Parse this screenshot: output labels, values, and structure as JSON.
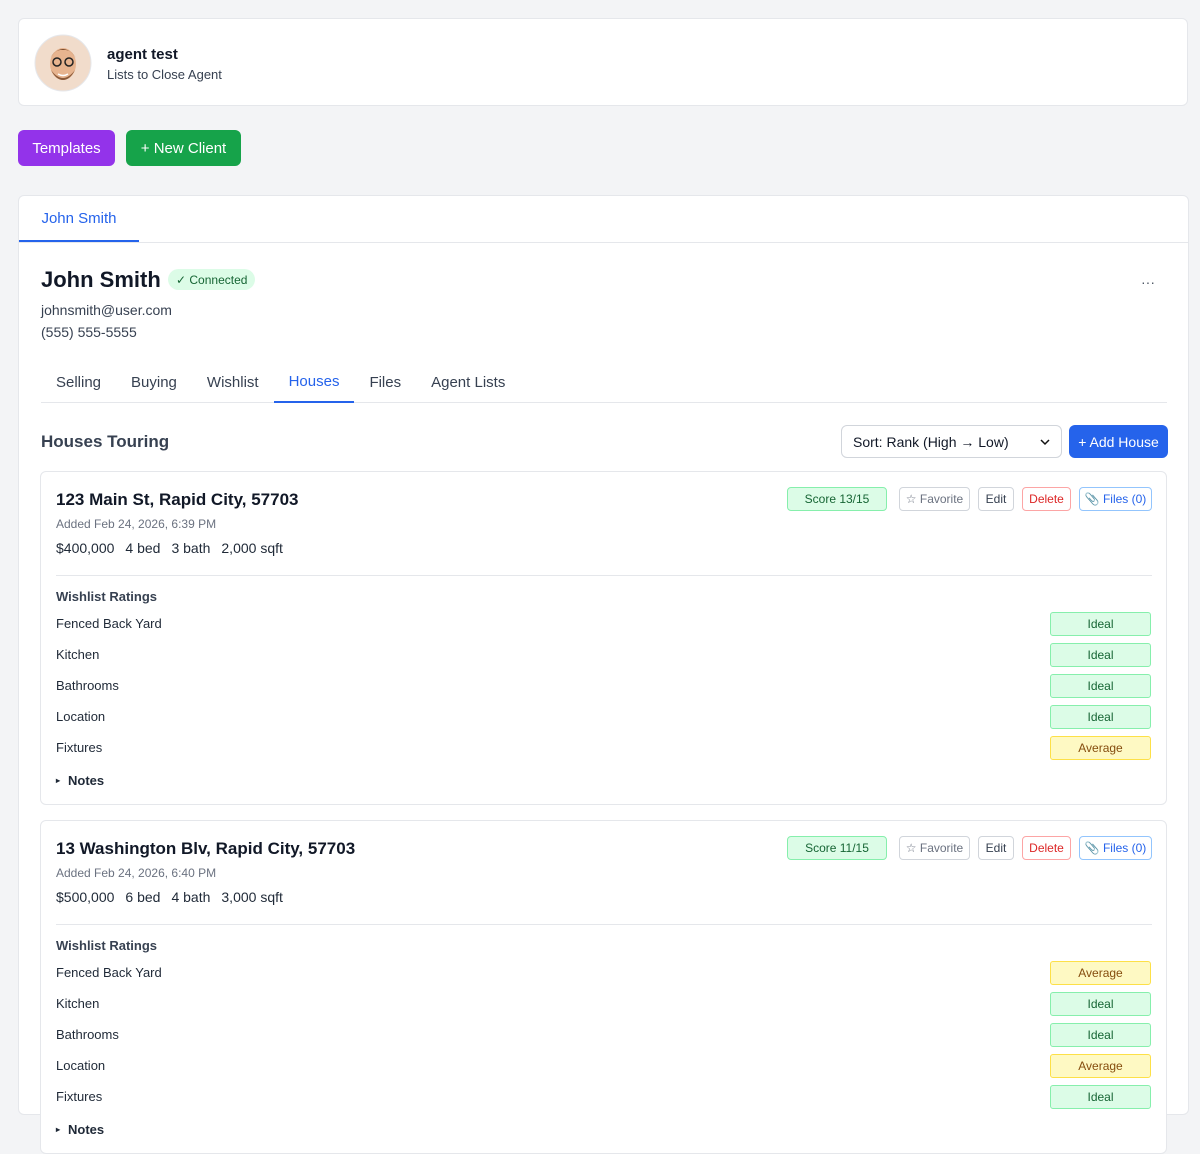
{
  "agent": {
    "name": "agent test",
    "role": "Lists to Close Agent"
  },
  "actions": [
    "Templates",
    "+ New Client"
  ],
  "client_tabs": [
    "John Smith"
  ],
  "client": {
    "name": "John Smith",
    "status": "✓ Connected",
    "email": "johnsmith@user.com",
    "phone": "(555) 555-5555",
    "menu": "···"
  },
  "section_tabs": [
    "Selling",
    "Buying",
    "Wishlist",
    "Houses",
    "Files",
    "Agent Lists"
  ],
  "active_section": 3,
  "houses_section": {
    "title": "Houses Touring",
    "sort": "Sort: Rank (High → Low)",
    "add_button": "+ Add House"
  },
  "houses": [
    {
      "address": "123 Main St, Rapid City, 57703",
      "added": "Added Feb 24, 2026, 6:39 PM",
      "price": "$400,000",
      "beds": "4 bed",
      "baths": "3 bath",
      "sqft": "2,000 sqft",
      "score": "Score 13/15",
      "buttons": [
        "☆ Favorite",
        "Edit",
        "Delete",
        "📎 Files (0)"
      ],
      "ratings_title": "Wishlist Ratings",
      "ratings": [
        {
          "label": "Fenced Back Yard",
          "rating": "Ideal",
          "color": "#dcfce7"
        },
        {
          "label": "Kitchen",
          "rating": "Ideal",
          "color": "#dcfce7"
        },
        {
          "label": "Bathrooms",
          "rating": "Ideal",
          "color": "#dcfce7"
        },
        {
          "label": "Location",
          "rating": "Ideal",
          "color": "#dcfce7"
        },
        {
          "label": "Fixtures",
          "rating": "Average",
          "color": "#fef9c3"
        }
      ],
      "notes": "Notes"
    },
    {
      "address": "13 Washington Blv, Rapid City, 57703",
      "added": "Added Feb 24, 2026, 6:40 PM",
      "price": "$500,000",
      "beds": "6 bed",
      "baths": "4 bath",
      "sqft": "3,000 sqft",
      "score": "Score 11/15",
      "buttons": [
        "☆ Favorite",
        "Edit",
        "Delete",
        "📎 Files (0)"
      ],
      "ratings_title": "Wishlist Ratings",
      "ratings": [
        {
          "label": "Fenced Back Yard",
          "rating": "Average",
          "color": "#fef9c3"
        },
        {
          "label": "Kitchen",
          "rating": "Ideal",
          "color": "#dcfce7"
        },
        {
          "label": "Bathrooms",
          "rating": "Ideal",
          "color": "#dcfce7"
        },
        {
          "label": "Location",
          "rating": "Average",
          "color": "#fef9c3"
        },
        {
          "label": "Fixtures",
          "rating": "Ideal",
          "color": "#dcfce7"
        }
      ],
      "notes": "Notes"
    }
  ]
}
